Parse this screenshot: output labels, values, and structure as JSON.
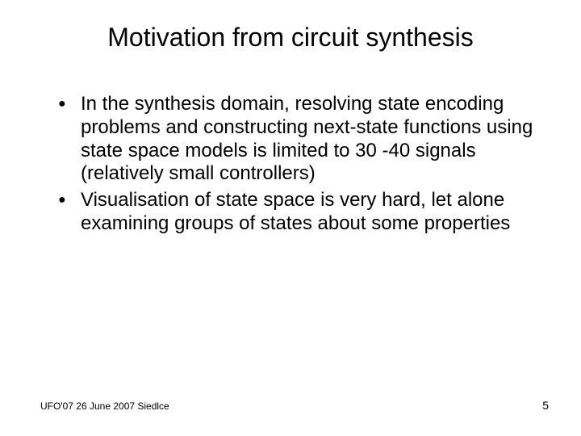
{
  "slide": {
    "title": "Motivation from circuit synthesis",
    "title_fontsize": 32,
    "body_fontsize": 24,
    "footer_fontsize": 12,
    "pagenum_fontsize": 14,
    "background_color": "#ffffff",
    "text_color": "#000000",
    "bullets": [
      "In the synthesis domain, resolving state encoding problems and constructing next-state functions using state space models is limited to 30 -40 signals (relatively small controllers)",
      "Visualisation of state space is very hard, let alone examining groups of states about some properties"
    ],
    "footer_left": "UFO'07 26 June 2007 Siedlce",
    "page_number": "5"
  }
}
